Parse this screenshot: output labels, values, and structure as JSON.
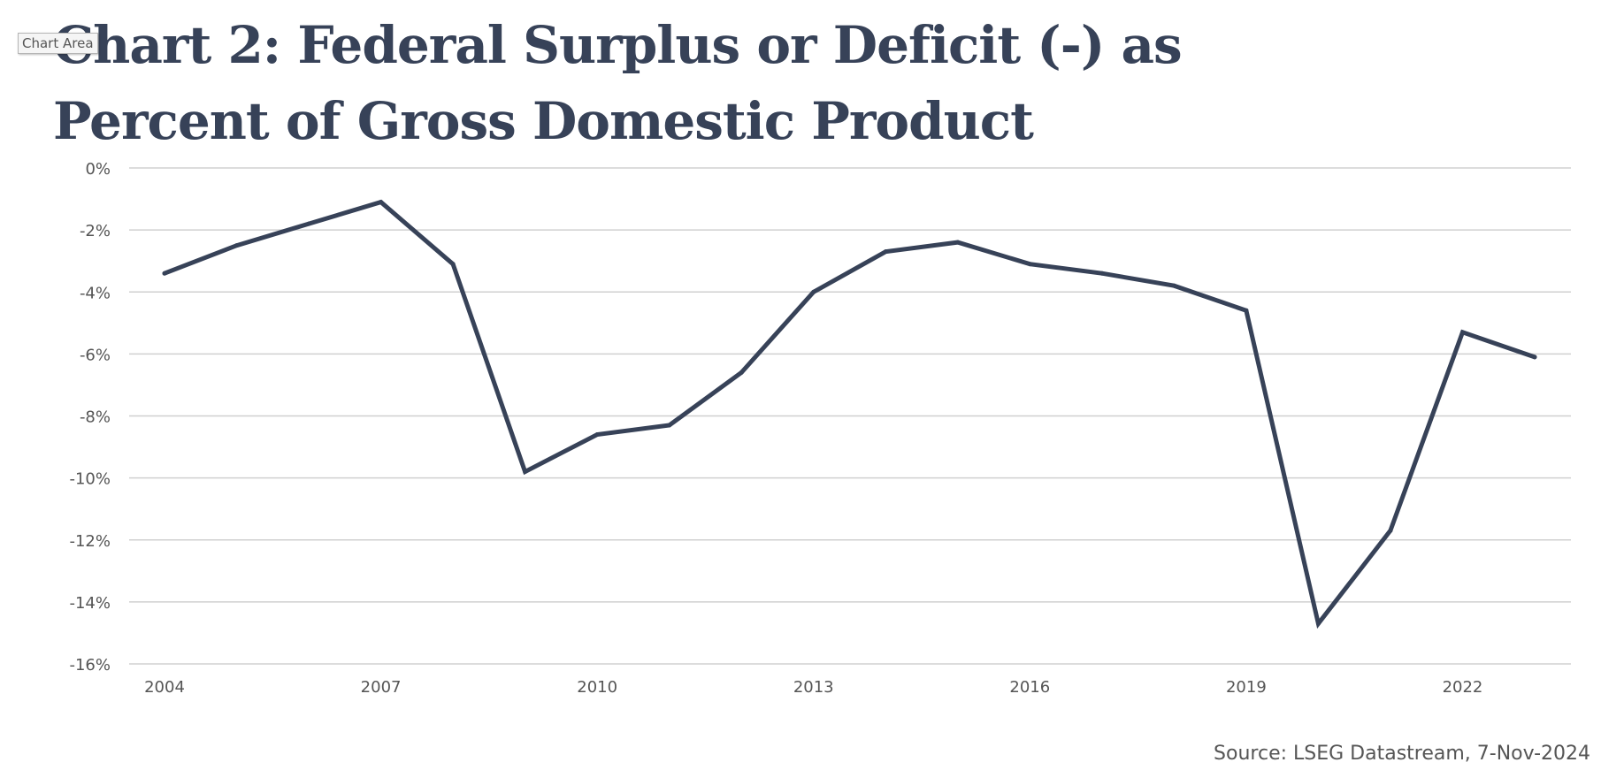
{
  "tooltip": "Chart Area",
  "source": "Source: LSEG Datastream, 7-Nov-2024",
  "colors": {
    "line": "#374258",
    "grid": "#d0d0d0",
    "axis_text": "#555555"
  },
  "chart_data": {
    "type": "line",
    "title": "Chart 2: Federal Surplus or Deficit (-) as Percent of Gross Domestic Product",
    "xlabel": "",
    "ylabel": "",
    "x": [
      2004,
      2005,
      2006,
      2007,
      2008,
      2009,
      2010,
      2011,
      2012,
      2013,
      2014,
      2015,
      2016,
      2017,
      2018,
      2019,
      2020,
      2021,
      2022,
      2023
    ],
    "series": [
      {
        "values": [
          -3.4,
          -2.5,
          -1.8,
          -1.1,
          -3.1,
          -9.8,
          -8.6,
          -8.3,
          -6.6,
          -4.0,
          -2.7,
          -2.4,
          -3.1,
          -3.4,
          -3.8,
          -4.6,
          -14.7,
          -11.7,
          -5.3,
          -6.1
        ]
      }
    ],
    "ylim": [
      -16,
      0
    ],
    "yticks": [
      0,
      -2,
      -4,
      -6,
      -8,
      -10,
      -12,
      -14,
      -16
    ],
    "ytick_labels": [
      "0%",
      "-2%",
      "-4%",
      "-6%",
      "-8%",
      "-10%",
      "-12%",
      "-14%",
      "-16%"
    ],
    "xticks": [
      2004,
      2007,
      2010,
      2013,
      2016,
      2019,
      2022
    ],
    "xtick_labels": [
      "2004",
      "2007",
      "2010",
      "2013",
      "2016",
      "2019",
      "2022"
    ],
    "grid": true,
    "legend": "none"
  }
}
